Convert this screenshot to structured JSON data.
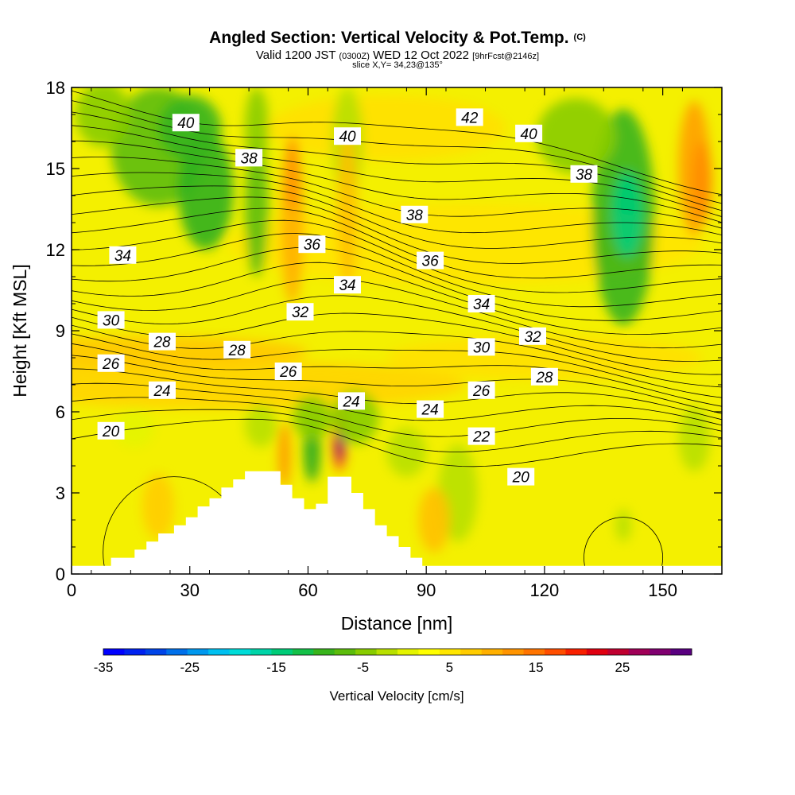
{
  "header": {
    "title": "Angled Section: Vertical Velocity & Pot.Temp.",
    "copyright": "(C)",
    "valid_prefix": "Valid 1200 JST",
    "valid_utc": "(0300Z)",
    "valid_date": "WED 12 Oct 2022",
    "forecast": "[9hrFcst@2146z]",
    "slice": "slice X,Y= 34,23@135°"
  },
  "chart_data": {
    "type": "heatmap",
    "xlabel": "Distance [nm]",
    "ylabel": "Height [Kft MSL]",
    "xlim": [
      0,
      165
    ],
    "ylim": [
      0,
      18
    ],
    "x_ticks": [
      0,
      30,
      60,
      90,
      120,
      150
    ],
    "y_ticks": [
      0,
      3,
      6,
      9,
      12,
      15,
      18
    ],
    "colorbar": {
      "label": "Vertical Velocity [cm/s]",
      "min": -35,
      "max": 33,
      "step": 2.5,
      "tick_labels": [
        -35,
        -25,
        -15,
        -5,
        5,
        15,
        25
      ],
      "colors": [
        "#0000ff",
        "#0022f0",
        "#0044e8",
        "#0070ea",
        "#0098ee",
        "#00c0f0",
        "#00dcd8",
        "#00d4a8",
        "#00cc78",
        "#14c048",
        "#38b41c",
        "#5cbc0c",
        "#88cc00",
        "#b8e000",
        "#e4f400",
        "#ffff00",
        "#ffe600",
        "#ffcc00",
        "#ffb000",
        "#ff9400",
        "#ff7400",
        "#ff4e00",
        "#f82000",
        "#e00010",
        "#c00030",
        "#a00058",
        "#800070",
        "#5a0080"
      ]
    },
    "theta_contour_labels": [
      {
        "value": "40",
        "x": 29,
        "y": 16.7
      },
      {
        "value": "38",
        "x": 45,
        "y": 15.4
      },
      {
        "value": "40",
        "x": 70,
        "y": 16.2
      },
      {
        "value": "42",
        "x": 101,
        "y": 16.9
      },
      {
        "value": "40",
        "x": 116,
        "y": 16.3
      },
      {
        "value": "38",
        "x": 130,
        "y": 14.8
      },
      {
        "value": "38",
        "x": 87,
        "y": 13.3
      },
      {
        "value": "36",
        "x": 61,
        "y": 12.2
      },
      {
        "value": "34",
        "x": 13,
        "y": 11.8
      },
      {
        "value": "36",
        "x": 91,
        "y": 11.6
      },
      {
        "value": "34",
        "x": 70,
        "y": 10.7
      },
      {
        "value": "34",
        "x": 104,
        "y": 10.0
      },
      {
        "value": "32",
        "x": 58,
        "y": 9.7
      },
      {
        "value": "30",
        "x": 10,
        "y": 9.4
      },
      {
        "value": "32",
        "x": 117,
        "y": 8.8
      },
      {
        "value": "28",
        "x": 23,
        "y": 8.6
      },
      {
        "value": "28",
        "x": 42,
        "y": 8.3
      },
      {
        "value": "30",
        "x": 104,
        "y": 8.4
      },
      {
        "value": "26",
        "x": 10,
        "y": 7.8
      },
      {
        "value": "26",
        "x": 55,
        "y": 7.5
      },
      {
        "value": "28",
        "x": 120,
        "y": 7.3
      },
      {
        "value": "26",
        "x": 104,
        "y": 6.8
      },
      {
        "value": "24",
        "x": 23,
        "y": 6.8
      },
      {
        "value": "24",
        "x": 71,
        "y": 6.4
      },
      {
        "value": "24",
        "x": 91,
        "y": 6.1
      },
      {
        "value": "22",
        "x": 104,
        "y": 5.1
      },
      {
        "value": "20",
        "x": 10,
        "y": 5.3
      },
      {
        "value": "20",
        "x": 114,
        "y": 3.6
      }
    ],
    "terrain_profile": [
      [
        0,
        0.3
      ],
      [
        10,
        0.3
      ],
      [
        10,
        0.6
      ],
      [
        16,
        0.6
      ],
      [
        16,
        0.9
      ],
      [
        19,
        0.9
      ],
      [
        19,
        1.2
      ],
      [
        22,
        1.2
      ],
      [
        22,
        1.5
      ],
      [
        26,
        1.5
      ],
      [
        26,
        1.8
      ],
      [
        29,
        1.8
      ],
      [
        29,
        2.1
      ],
      [
        32,
        2.1
      ],
      [
        32,
        2.5
      ],
      [
        35,
        2.5
      ],
      [
        35,
        2.8
      ],
      [
        38,
        2.8
      ],
      [
        38,
        3.2
      ],
      [
        41,
        3.2
      ],
      [
        41,
        3.5
      ],
      [
        44,
        3.5
      ],
      [
        44,
        3.8
      ],
      [
        53,
        3.8
      ],
      [
        53,
        3.3
      ],
      [
        56,
        3.3
      ],
      [
        56,
        2.8
      ],
      [
        59,
        2.8
      ],
      [
        59,
        2.4
      ],
      [
        62,
        2.4
      ],
      [
        62,
        2.6
      ],
      [
        65,
        2.6
      ],
      [
        65,
        3.6
      ],
      [
        71,
        3.6
      ],
      [
        71,
        3.0
      ],
      [
        74,
        3.0
      ],
      [
        74,
        2.4
      ],
      [
        77,
        2.4
      ],
      [
        77,
        1.8
      ],
      [
        80,
        1.8
      ],
      [
        80,
        1.4
      ],
      [
        83,
        1.4
      ],
      [
        83,
        1.0
      ],
      [
        86,
        1.0
      ],
      [
        86,
        0.6
      ],
      [
        89,
        0.6
      ],
      [
        89,
        0.3
      ],
      [
        165,
        0.3
      ]
    ]
  }
}
